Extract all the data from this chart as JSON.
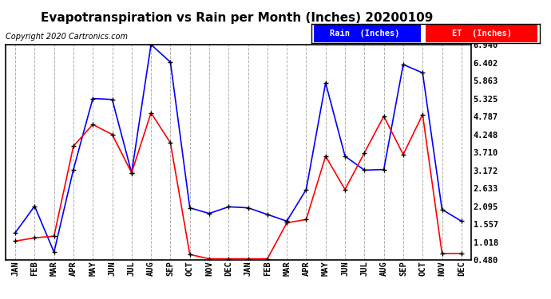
{
  "title": "Evapotranspiration vs Rain per Month (Inches) 20200109",
  "copyright": "Copyright 2020 Cartronics.com",
  "ylabel_right_values": [
    6.94,
    6.402,
    5.863,
    5.325,
    4.787,
    4.248,
    3.71,
    3.172,
    2.633,
    2.095,
    1.557,
    1.018,
    0.48
  ],
  "x_labels": [
    "JAN",
    "FEB",
    "MAR",
    "APR",
    "MAY",
    "JUN",
    "JUL",
    "AUG",
    "SEP",
    "OCT",
    "NOV",
    "DEC",
    "JAN",
    "FEB",
    "MAR",
    "APR",
    "MAY",
    "JUN",
    "JUL",
    "AUG",
    "SEP",
    "OCT",
    "NOV",
    "DEC"
  ],
  "rain_values": [
    1.3,
    2.1,
    0.72,
    3.2,
    5.33,
    5.3,
    3.1,
    6.95,
    6.42,
    2.05,
    1.88,
    2.08,
    2.05,
    1.85,
    1.65,
    2.6,
    5.8,
    3.6,
    3.18,
    3.2,
    6.35,
    6.1,
    2.0,
    1.65
  ],
  "et_values": [
    1.05,
    1.15,
    1.2,
    3.9,
    4.55,
    4.25,
    3.1,
    4.9,
    4.0,
    0.65,
    0.52,
    0.52,
    0.52,
    0.52,
    1.6,
    1.7,
    3.6,
    2.6,
    3.7,
    4.8,
    3.65,
    4.85,
    0.68,
    0.68
  ],
  "rain_color": "#0000ff",
  "et_color": "#ff0000",
  "marker_color": "#000000",
  "background_color": "#ffffff",
  "grid_color": "#b0b0b0",
  "title_fontsize": 11,
  "copyright_fontsize": 7,
  "legend_rain_label": "Rain  (Inches)",
  "legend_et_label": "ET  (Inches)",
  "ylim": [
    0.48,
    6.94
  ]
}
